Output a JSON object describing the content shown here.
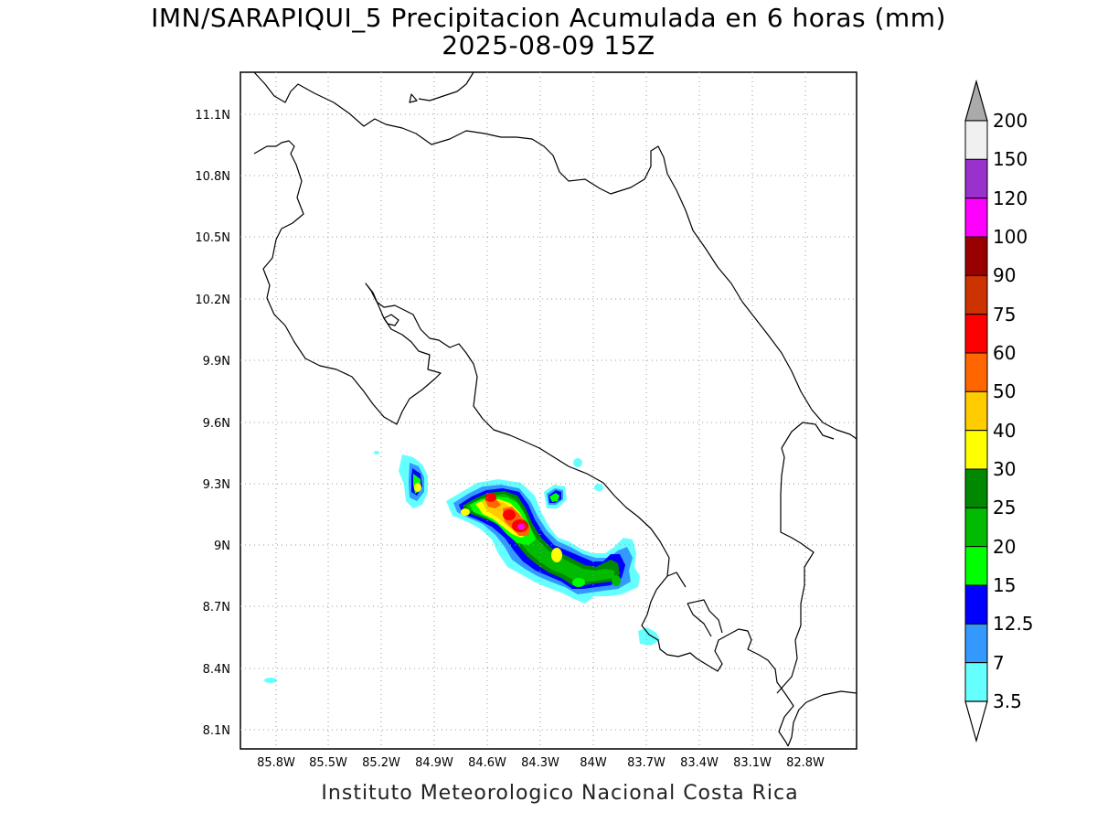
{
  "title": {
    "line1": "IMN/SARAPIQUI_5 Precipitacion Acumulada en 6 horas (mm)",
    "line2": "2025-08-09 15Z"
  },
  "footer": "Instituto Meteorologico Nacional Costa Rica",
  "map": {
    "lat_labels": [
      "11.1N",
      "10.8N",
      "10.5N",
      "10.2N",
      "9.9N",
      "9.6N",
      "9.3N",
      "9N",
      "8.7N",
      "8.4N",
      "8.1N"
    ],
    "lon_labels": [
      "85.8W",
      "85.5W",
      "85.2W",
      "84.9W",
      "84.6W",
      "84.3W",
      "84W",
      "83.7W",
      "83.4W",
      "83.1W",
      "82.8W"
    ]
  },
  "legend": {
    "labels": [
      "200",
      "150",
      "120",
      "100",
      "90",
      "75",
      "60",
      "50",
      "40",
      "30",
      "25",
      "20",
      "15",
      "12.5",
      "7",
      "3.5"
    ],
    "colors": [
      "#f0f0f0",
      "#9932cc",
      "#ff00ff",
      "#990000",
      "#cc3300",
      "#ff0000",
      "#ff6600",
      "#ffcc00",
      "#ffff00",
      "#008800",
      "#00bb00",
      "#00ff00",
      "#0000ff",
      "#3399ff",
      "#66ffff"
    ],
    "overflow_color": "#aaaaaa"
  }
}
